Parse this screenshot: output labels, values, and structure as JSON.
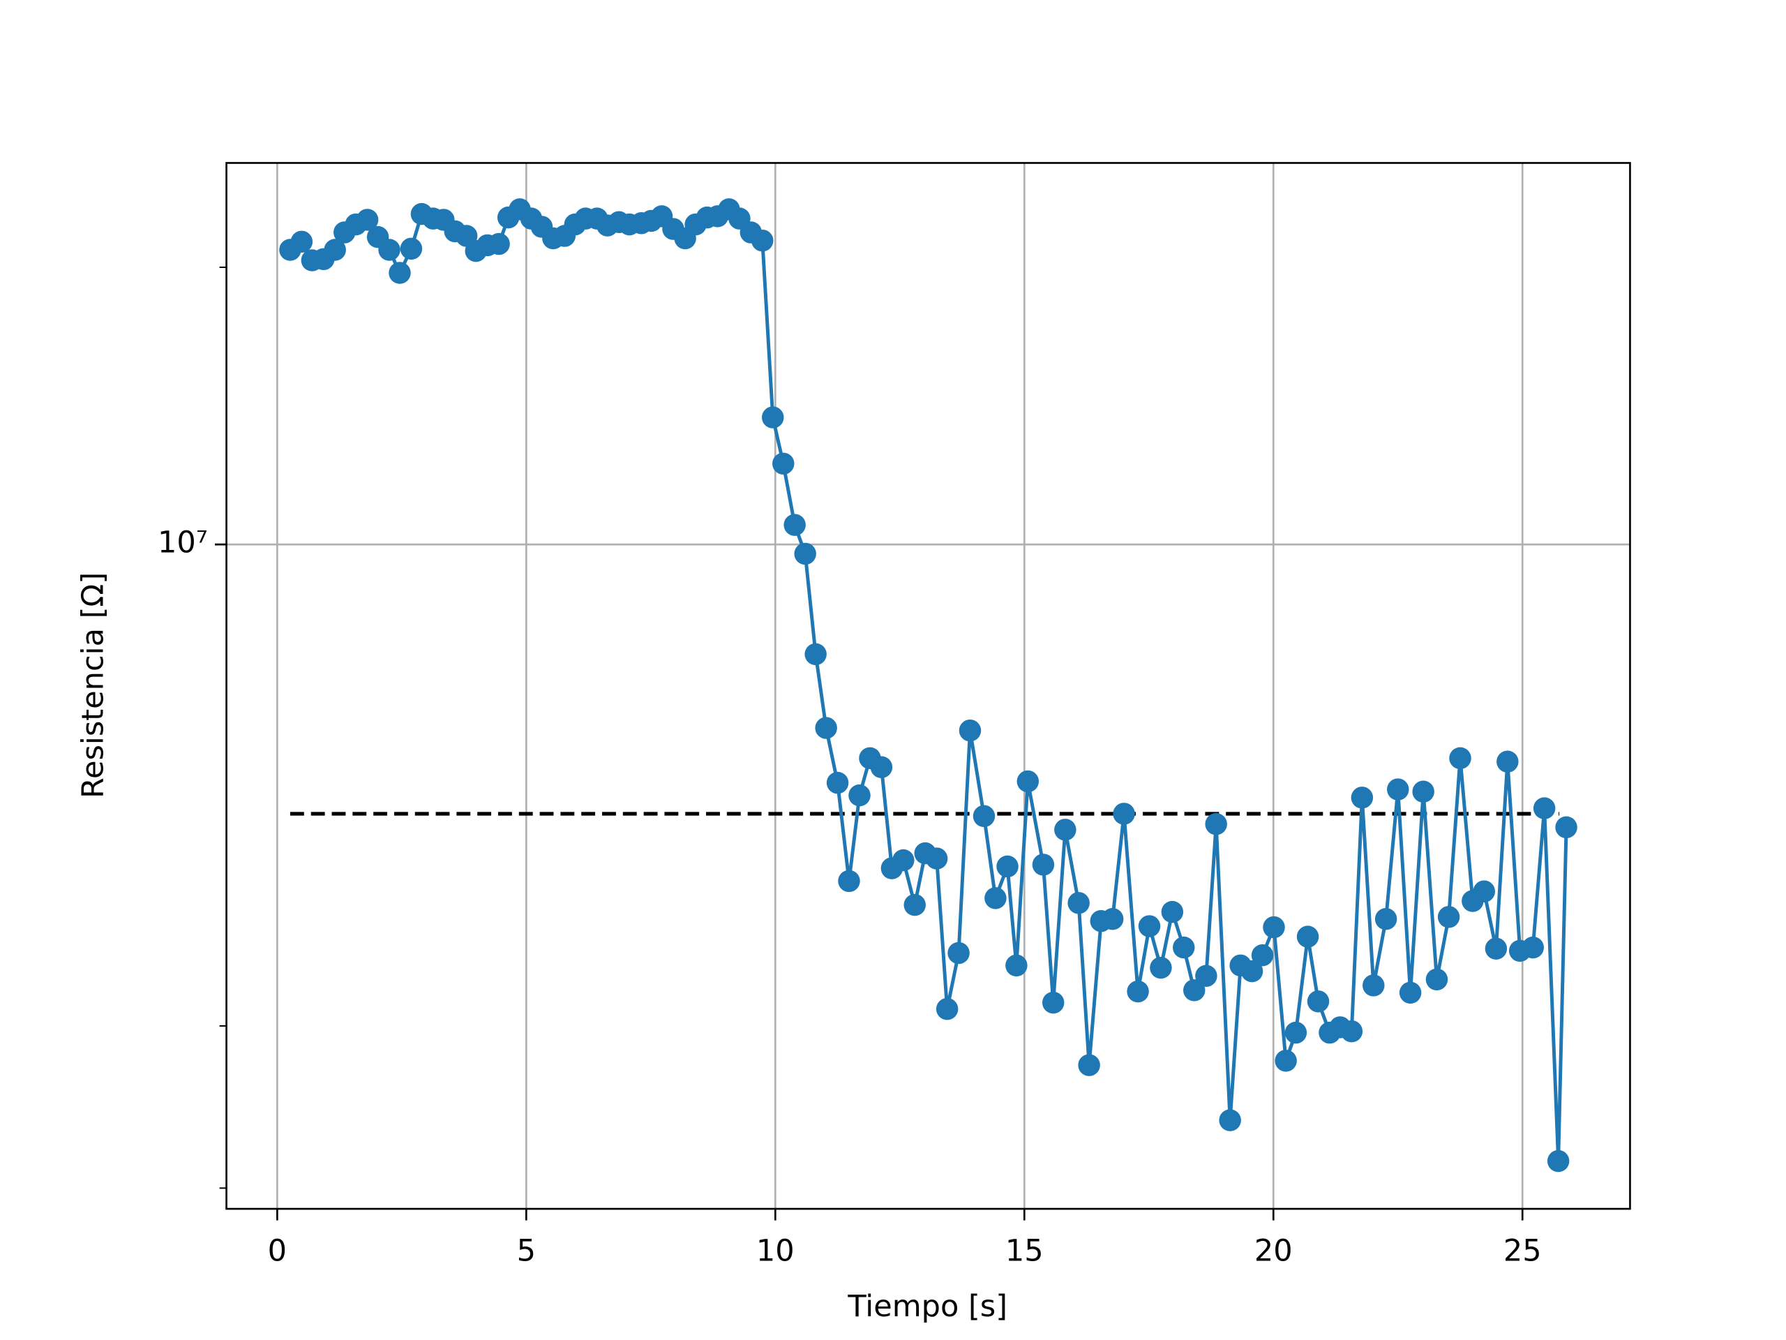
{
  "chart_data": {
    "type": "line",
    "xlabel": "Tiempo [s]",
    "ylabel": "Resistencia [Ω]",
    "log_y": true,
    "grid": true,
    "marker": "circle",
    "xlim": [
      -1.02,
      27.16
    ],
    "xticks": [
      0,
      5,
      10,
      15,
      20,
      25
    ],
    "ylim": [
      1899000,
      25960000
    ],
    "yticks": [
      {
        "value": 10000000,
        "label": "10⁷"
      }
    ],
    "yminorticks": [
      2000000,
      3000000,
      20000000
    ],
    "series": [
      {
        "color": "#1f77b4",
        "x": [
          0.26,
          0.49,
          0.7,
          0.93,
          1.16,
          1.35,
          1.58,
          1.81,
          2.02,
          2.25,
          2.46,
          2.69,
          2.9,
          3.13,
          3.34,
          3.57,
          3.8,
          3.99,
          4.22,
          4.45,
          4.64,
          4.87,
          5.1,
          5.31,
          5.54,
          5.77,
          5.98,
          6.19,
          6.42,
          6.63,
          6.86,
          7.07,
          7.31,
          7.51,
          7.72,
          7.95,
          8.19,
          8.4,
          8.63,
          8.84,
          9.07,
          9.28,
          9.51,
          9.74,
          9.95,
          10.16,
          10.39,
          10.6,
          10.81,
          11.02,
          11.25,
          11.48,
          11.69,
          11.9,
          12.13,
          12.34,
          12.57,
          12.8,
          13.01,
          13.24,
          13.45,
          13.68,
          13.91,
          14.19,
          14.42,
          14.66,
          14.84,
          15.07,
          15.38,
          15.58,
          15.82,
          16.09,
          16.3,
          16.54,
          16.77,
          17.0,
          17.28,
          17.51,
          17.74,
          17.97,
          18.2,
          18.41,
          18.65,
          18.85,
          19.13,
          19.34,
          19.57,
          19.78,
          20.01,
          20.25,
          20.45,
          20.69,
          20.9,
          21.13,
          21.34,
          21.57,
          21.78,
          22.01,
          22.26,
          22.5,
          22.75,
          23.01,
          23.28,
          23.52,
          23.75,
          24.0,
          24.23,
          24.47,
          24.7,
          24.95,
          25.21,
          25.44,
          25.72,
          25.88
        ],
        "values": [
          20890000,
          21320000,
          20350000,
          20410000,
          20890000,
          21820000,
          22260000,
          22520000,
          21570000,
          20890000,
          19720000,
          20950000,
          22850000,
          22590000,
          22520000,
          21880000,
          21630000,
          20830000,
          21130000,
          21200000,
          22650000,
          23120000,
          22590000,
          22130000,
          21500000,
          21630000,
          22260000,
          22590000,
          22590000,
          22200000,
          22390000,
          22260000,
          22330000,
          22460000,
          22720000,
          22010000,
          21500000,
          22260000,
          22650000,
          22720000,
          23120000,
          22590000,
          21820000,
          21380000,
          13740000,
          12240000,
          10500000,
          9770000,
          7600000,
          6320000,
          5510000,
          4310000,
          5340000,
          5860000,
          5730000,
          4450000,
          4540000,
          4060000,
          4620000,
          4560000,
          3130000,
          3600000,
          6280000,
          5070000,
          4130000,
          4470000,
          3490000,
          5530000,
          4490000,
          3180000,
          4900000,
          4080000,
          2720000,
          3900000,
          3920000,
          5100000,
          3270000,
          3850000,
          3470000,
          3990000,
          3650000,
          3280000,
          3400000,
          4970000,
          2370000,
          3490000,
          3440000,
          3580000,
          3840000,
          2750000,
          2950000,
          3750000,
          3190000,
          2950000,
          2990000,
          2960000,
          5310000,
          3320000,
          3920000,
          5420000,
          3260000,
          5390000,
          3370000,
          3940000,
          5860000,
          4100000,
          4200000,
          3640000,
          5810000,
          3620000,
          3650000,
          5170000,
          2140000,
          4930000
        ]
      }
    ],
    "reference_line": {
      "value": 5100000,
      "xstart": 0.26,
      "xend": 25.74,
      "color": "#000000",
      "style": "dashed"
    }
  }
}
